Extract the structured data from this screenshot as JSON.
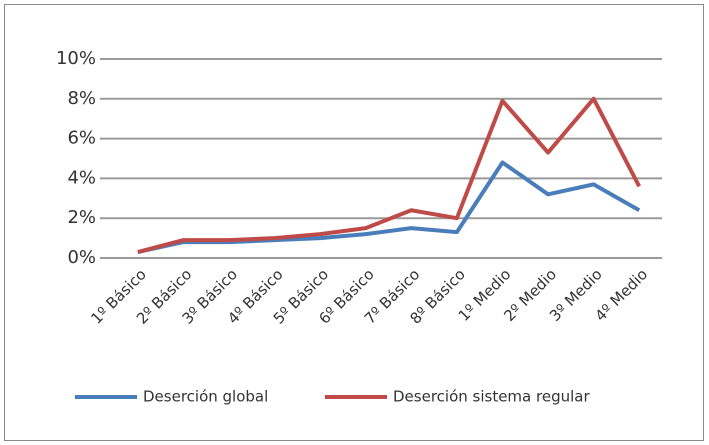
{
  "chart_data": {
    "type": "line",
    "categories": [
      "1º Básico",
      "2º Básico",
      "3º Básico",
      "4º Básico",
      "5º Básico",
      "6º Básico",
      "7º Básico",
      "8º Básico",
      "1º Medio",
      "2º Medio",
      "3º Medio",
      "4º Medio"
    ],
    "series": [
      {
        "name": "Deserción global",
        "color": "#4a7ebb",
        "values": [
          0.3,
          0.8,
          0.8,
          0.9,
          1.0,
          1.2,
          1.5,
          1.3,
          4.8,
          3.2,
          3.7,
          2.4
        ]
      },
      {
        "name": "Deserción sistema regular",
        "color": "#be4b48",
        "values": [
          0.3,
          0.9,
          0.9,
          1.0,
          1.2,
          1.5,
          2.4,
          2.0,
          7.9,
          5.3,
          8.0,
          3.6
        ]
      }
    ],
    "ylim": [
      0,
      10
    ],
    "yticks": [
      {
        "value": 0,
        "label": "0%"
      },
      {
        "value": 2,
        "label": "2%"
      },
      {
        "value": 4,
        "label": "4%"
      },
      {
        "value": 6,
        "label": "6%"
      },
      {
        "value": 8,
        "label": "8%"
      },
      {
        "value": 10,
        "label": "10%"
      }
    ],
    "grid": true,
    "legend": "bottom"
  }
}
